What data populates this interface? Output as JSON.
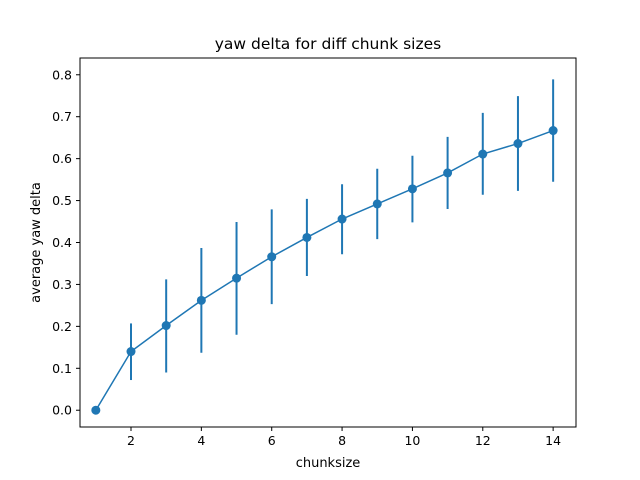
{
  "chart_data": {
    "type": "line",
    "title": "yaw delta for diff chunk sizes",
    "xlabel": "chunksize",
    "ylabel": "average yaw delta",
    "xlim": [
      0.55,
      14.65
    ],
    "ylim": [
      -0.04,
      0.84
    ],
    "xticks": [
      2,
      4,
      6,
      8,
      10,
      12,
      14
    ],
    "yticks": [
      0.0,
      0.1,
      0.2,
      0.3,
      0.4,
      0.5,
      0.6,
      0.7,
      0.8
    ],
    "ytick_labels": [
      "0.0",
      "0.1",
      "0.2",
      "0.3",
      "0.4",
      "0.5",
      "0.6",
      "0.7",
      "0.8"
    ],
    "grid": false,
    "color": "#1f77b4",
    "series": [
      {
        "x": [
          1,
          2,
          3,
          4,
          5,
          6,
          7,
          8,
          9,
          10,
          11,
          12,
          13,
          14
        ],
        "y": [
          0.0,
          0.14,
          0.202,
          0.262,
          0.315,
          0.366,
          0.412,
          0.456,
          0.492,
          0.528,
          0.566,
          0.611,
          0.636,
          0.667
        ],
        "yerr_low": [
          0.0,
          0.072,
          0.09,
          0.137,
          0.18,
          0.253,
          0.32,
          0.372,
          0.408,
          0.448,
          0.48,
          0.514,
          0.523,
          0.545
        ],
        "yerr_high": [
          0.0,
          0.207,
          0.312,
          0.387,
          0.449,
          0.479,
          0.504,
          0.539,
          0.576,
          0.607,
          0.652,
          0.709,
          0.749,
          0.789
        ]
      }
    ]
  }
}
